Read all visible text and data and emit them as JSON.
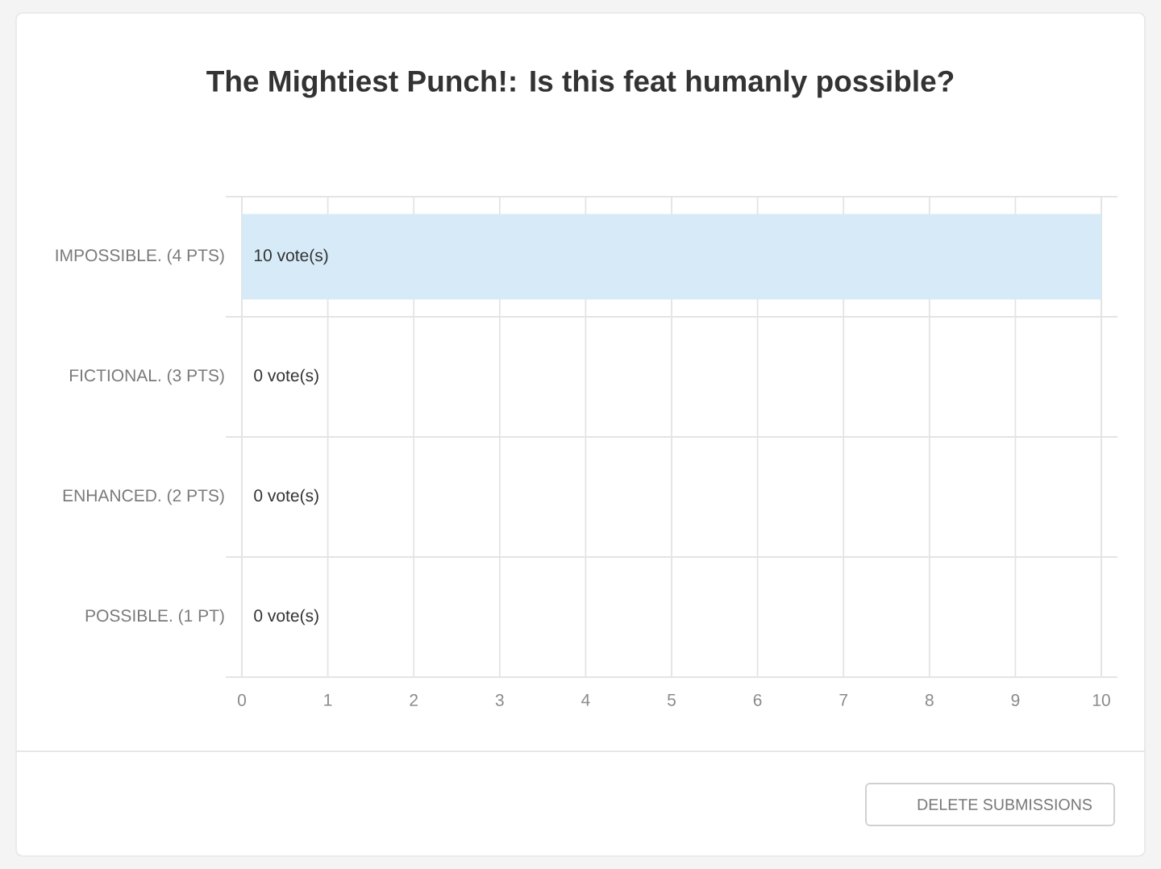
{
  "chart_data": {
    "type": "bar",
    "orientation": "horizontal",
    "title": "The Mightiest Punch!: Is this feat humanly possible?",
    "categories": [
      "IMPOSSIBLE. (4 PTS)",
      "FICTIONAL. (3 PTS)",
      "ENHANCED. (2 PTS)",
      "POSSIBLE. (1 PT)"
    ],
    "values": [
      10,
      0,
      0,
      0
    ],
    "color": "#d6eaf8",
    "value_labels": [
      "10 vote(s)",
      "0 vote(s)",
      "0 vote(s)",
      "0 vote(s)"
    ],
    "xlim": [
      0,
      10
    ],
    "xticks": [
      0,
      1,
      2,
      3,
      4,
      5,
      6,
      7,
      8,
      9,
      10
    ],
    "grid": true,
    "annotations": [
      "DELETE SUBMISSIONS"
    ]
  }
}
